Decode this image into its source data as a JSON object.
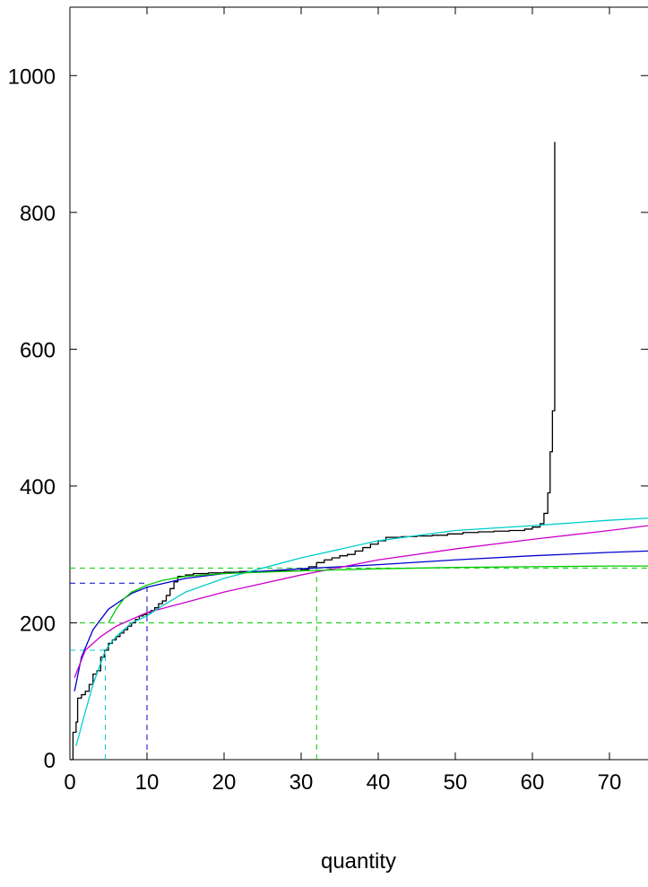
{
  "chart_data": {
    "type": "line",
    "title": "",
    "xlabel": "quantity",
    "ylabel": "",
    "xlim": [
      0,
      75
    ],
    "ylim": [
      0,
      1100
    ],
    "grid": false,
    "legend": "none",
    "x_ticks": [
      "0",
      "10",
      "20",
      "30",
      "40",
      "50",
      "60",
      "70"
    ],
    "y_ticks": [
      "0",
      "200",
      "400",
      "600",
      "800",
      "1000"
    ],
    "x_tick_values": [
      0,
      10,
      20,
      30,
      40,
      50,
      60,
      70
    ],
    "y_tick_values": [
      0,
      200,
      400,
      600,
      800,
      1000
    ],
    "series": [
      {
        "color": "#000000",
        "style": "step",
        "x": [
          0.0,
          0.4,
          0.8,
          1.0,
          1.5,
          2.0,
          2.5,
          3.0,
          3.5,
          4.0,
          4.5,
          5.0,
          5.5,
          6.0,
          6.5,
          7.0,
          7.5,
          8.0,
          8.5,
          9.0,
          9.5,
          10.0,
          10.5,
          11.0,
          11.5,
          12.0,
          12.5,
          13.0,
          13.5,
          14.0,
          15.0,
          16.0,
          17.0,
          18.0,
          19.0,
          20.0,
          22.0,
          24.0,
          26.0,
          28.0,
          30.0,
          31.0,
          32.0,
          33.0,
          34.0,
          35.0,
          36.0,
          37.0,
          38.0,
          39.0,
          40.0,
          41.0,
          43.0,
          45.0,
          47.0,
          49.0,
          51.0,
          53.0,
          55.0,
          57.0,
          59.0,
          60.0,
          61.0,
          61.5,
          62.0,
          62.3,
          62.6,
          62.9
        ],
        "y": [
          0,
          40,
          55,
          90,
          95,
          100,
          110,
          125,
          130,
          150,
          160,
          170,
          175,
          180,
          185,
          190,
          195,
          200,
          205,
          210,
          212,
          215,
          218,
          222,
          228,
          232,
          240,
          250,
          260,
          268,
          270,
          272,
          272,
          273,
          273,
          274,
          275,
          275,
          276,
          276,
          278,
          282,
          288,
          292,
          295,
          298,
          300,
          305,
          310,
          315,
          320,
          325,
          326,
          327,
          328,
          330,
          332,
          333,
          334,
          335,
          337,
          340,
          345,
          360,
          390,
          450,
          510,
          903
        ]
      },
      {
        "color": "#0000cc",
        "style": "smooth",
        "x": [
          0.6,
          1.5,
          3.0,
          5.0,
          8.0,
          10.0,
          15.0,
          20.0,
          30.0,
          40.0,
          50.0,
          60.0,
          70.0,
          75.0
        ],
        "y": [
          100,
          150,
          190,
          220,
          243,
          252,
          265,
          272,
          279,
          285,
          292,
          298,
          303,
          305
        ]
      },
      {
        "color": "#cc00cc",
        "style": "smooth",
        "x": [
          0.6,
          2.0,
          4.0,
          6.0,
          8.0,
          10.0,
          15.0,
          20.0,
          30.0,
          40.0,
          50.0,
          60.0,
          70.0,
          75.0
        ],
        "y": [
          120,
          160,
          180,
          195,
          205,
          215,
          230,
          245,
          270,
          292,
          308,
          322,
          335,
          342
        ]
      },
      {
        "color": "#00cccc",
        "style": "smooth",
        "x": [
          0.8,
          2.0,
          3.0,
          4.6,
          6.0,
          8.0,
          10.0,
          12.0,
          15.0,
          20.0,
          25.0,
          30.0,
          40.0,
          50.0,
          60.0,
          70.0,
          75.0
        ],
        "y": [
          20,
          70,
          110,
          160,
          180,
          200,
          210,
          225,
          245,
          265,
          280,
          295,
          320,
          335,
          342,
          350,
          353
        ]
      },
      {
        "color": "#00cc00",
        "style": "smooth",
        "x": [
          5.0,
          6.0,
          7.0,
          8.0,
          10.0,
          12.0,
          15.0,
          20.0,
          25.0,
          30.0,
          40.0,
          50.0,
          60.0,
          70.0,
          75.0
        ],
        "y": [
          200,
          220,
          235,
          245,
          255,
          262,
          268,
          272,
          274,
          276,
          279,
          281,
          282,
          283,
          283
        ]
      }
    ],
    "reference_lines": [
      {
        "color": "#00cc00",
        "orientation": "h",
        "value": 280
      },
      {
        "color": "#00cc00",
        "orientation": "h",
        "value": 200
      },
      {
        "color": "#0000cc",
        "orientation": "h",
        "value": 258,
        "to_x": 10
      },
      {
        "color": "#00cccc",
        "orientation": "h",
        "value": 160,
        "to_x": 4.6
      },
      {
        "color": "#00cc00",
        "orientation": "v",
        "value": 32,
        "to_y": 280
      },
      {
        "color": "#0000cc",
        "orientation": "v",
        "value": 10,
        "to_y": 258
      },
      {
        "color": "#00cccc",
        "orientation": "v",
        "value": 4.6,
        "to_y": 160
      }
    ]
  }
}
